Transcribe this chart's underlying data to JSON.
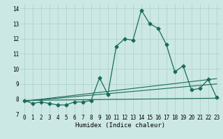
{
  "title": "",
  "xlabel": "Humidex (Indice chaleur)",
  "bg_color": "#cce8e4",
  "grid_color": "#aacfca",
  "line_color": "#1a6b5a",
  "xlim": [
    -0.5,
    23.5
  ],
  "ylim": [
    7.0,
    14.3
  ],
  "yticks": [
    7,
    8,
    9,
    10,
    11,
    12,
    13,
    14
  ],
  "xticks": [
    0,
    1,
    2,
    3,
    4,
    5,
    6,
    7,
    8,
    9,
    10,
    11,
    12,
    13,
    14,
    15,
    16,
    17,
    18,
    19,
    20,
    21,
    22,
    23
  ],
  "main_x": [
    0,
    1,
    2,
    3,
    4,
    5,
    6,
    7,
    8,
    9,
    10,
    11,
    12,
    13,
    14,
    15,
    16,
    17,
    18,
    19,
    20,
    21,
    22,
    23
  ],
  "main_y": [
    7.9,
    7.7,
    7.8,
    7.7,
    7.6,
    7.6,
    7.8,
    7.8,
    7.9,
    9.4,
    8.3,
    11.5,
    12.0,
    11.9,
    13.9,
    13.0,
    12.7,
    11.6,
    9.8,
    10.2,
    8.6,
    8.7,
    9.3,
    8.1
  ],
  "line2_x": [
    0,
    23
  ],
  "line2_y": [
    7.85,
    9.0
  ],
  "line3_x": [
    0,
    23
  ],
  "line3_y": [
    7.85,
    9.35
  ],
  "line4_x": [
    0,
    23
  ],
  "line4_y": [
    7.9,
    8.05
  ],
  "marker_size": 2.5,
  "font_family": "monospace",
  "tick_fontsize": 5.5,
  "xlabel_fontsize": 6.5
}
